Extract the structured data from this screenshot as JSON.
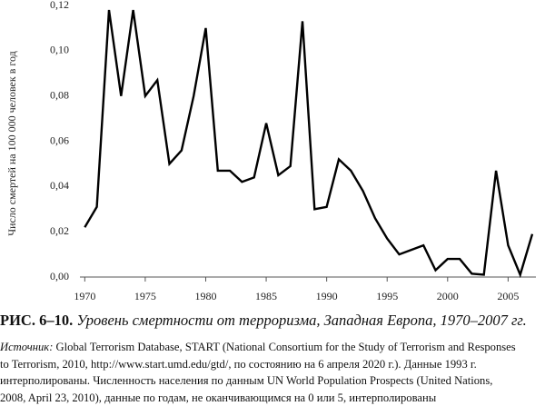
{
  "chart_data": {
    "type": "line",
    "ylabel": "Число смертей на 100 000 человек в год",
    "x": [
      1970,
      1971,
      1972,
      1973,
      1974,
      1975,
      1976,
      1977,
      1978,
      1979,
      1980,
      1981,
      1982,
      1983,
      1984,
      1985,
      1986,
      1987,
      1988,
      1989,
      1990,
      1991,
      1992,
      1993,
      1994,
      1995,
      1996,
      1997,
      1998,
      1999,
      2000,
      2001,
      2002,
      2003,
      2004,
      2005,
      2006,
      2007
    ],
    "values": [
      0.022,
      0.031,
      0.118,
      0.08,
      0.118,
      0.08,
      0.087,
      0.05,
      0.056,
      0.08,
      0.11,
      0.047,
      0.047,
      0.042,
      0.044,
      0.068,
      0.045,
      0.049,
      0.113,
      0.03,
      0.031,
      0.052,
      0.047,
      0.038,
      0.026,
      0.017,
      0.01,
      0.012,
      0.014,
      0.003,
      0.008,
      0.008,
      0.0015,
      0.001,
      0.047,
      0.014,
      0.001,
      0.019
    ],
    "color": "#000000",
    "xlim": [
      1969.6,
      2007.3
    ],
    "xticks": [
      1970,
      1975,
      1980,
      1985,
      1990,
      1995,
      2000,
      2005
    ],
    "ylim": [
      0,
      0.12
    ],
    "yticks": [
      {
        "value": 0,
        "label": "0,00"
      },
      {
        "value": 0.02,
        "label": "0,02"
      },
      {
        "value": 0.04,
        "label": "0,04"
      },
      {
        "value": 0.06,
        "label": "0,06"
      },
      {
        "value": 0.08,
        "label": "0,08"
      },
      {
        "value": 0.1,
        "label": "0,10"
      },
      {
        "value": 0.12,
        "label": "0,12"
      }
    ]
  },
  "caption": {
    "label": "РИС. 6–10.",
    "text": "Уровень смертности от терроризма, Западная Европа, 1970–2007 гг."
  },
  "source": {
    "label": "Источник:",
    "lines": [
      "Global Terrorism Database, START (National Consortium for the Study of Terrorism and Responses",
      "to Terrorism, 2010, http://www.start.umd.edu/gtd/, по состоянию на 6 апреля 2020 г.). Данные 1993 г.",
      "интерполированы. Численность населения по данным UN World Population Prospects (United Nations,",
      "2008, April 23, 2010), данные по годам, не оканчивающимся на 0 или 5, интерполированы"
    ]
  }
}
